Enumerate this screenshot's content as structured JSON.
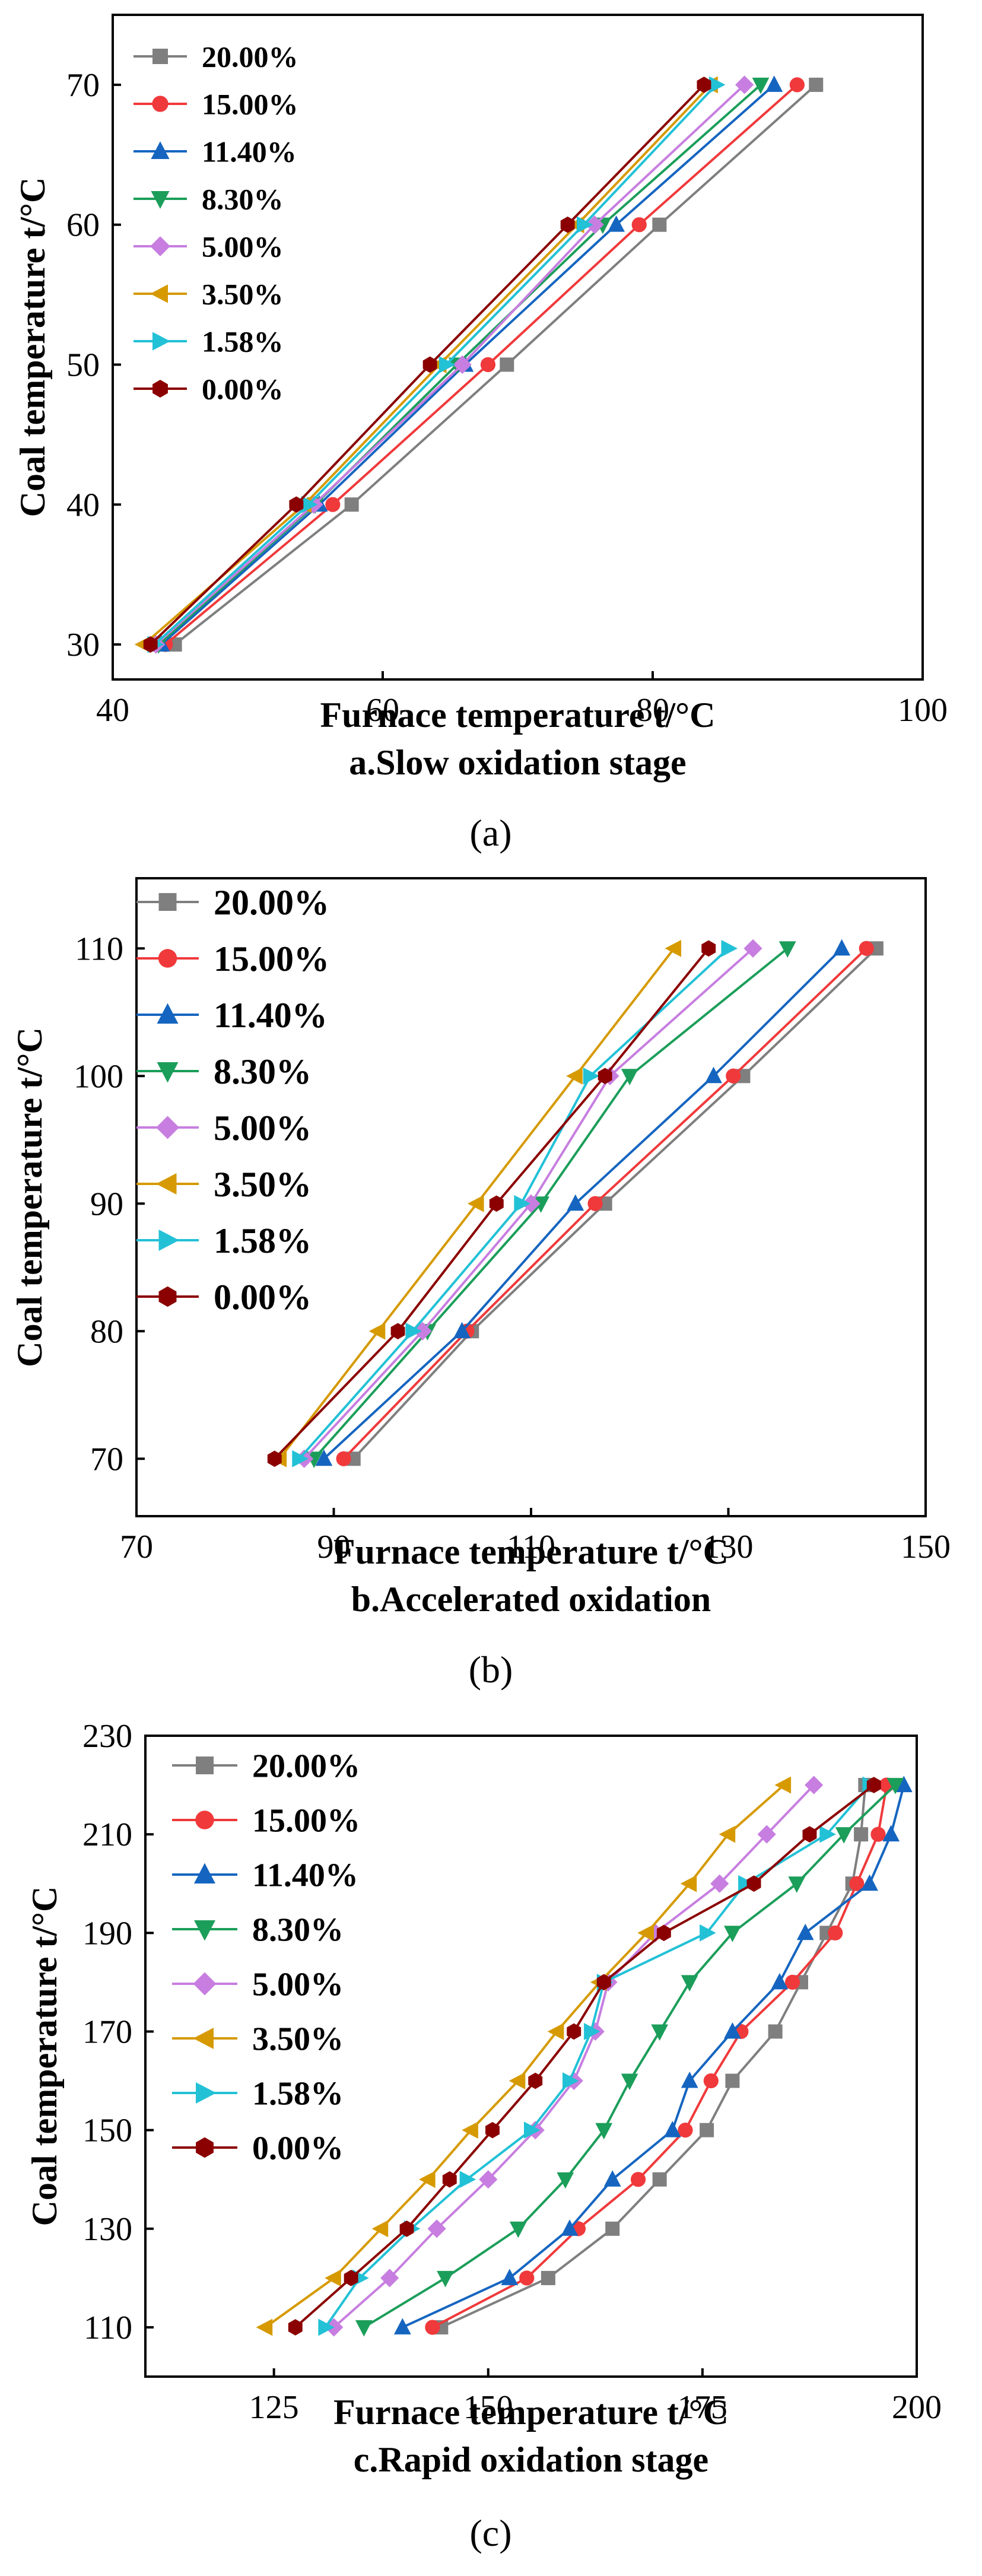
{
  "series_styles": [
    {
      "name": "20.00%",
      "color": "#7f7f7f",
      "marker": "square"
    },
    {
      "name": "15.00%",
      "color": "#f0393b",
      "marker": "circle"
    },
    {
      "name": "11.40%",
      "color": "#1565c0",
      "marker": "triangle-up"
    },
    {
      "name": "8.30%",
      "color": "#1b9e5a",
      "marker": "triangle-down"
    },
    {
      "name": "5.00%",
      "color": "#c77ee0",
      "marker": "diamond"
    },
    {
      "name": "3.50%",
      "color": "#d69a00",
      "marker": "triangle-left"
    },
    {
      "name": "1.58%",
      "color": "#22c1d6",
      "marker": "triangle-right"
    },
    {
      "name": "0.00%",
      "color": "#8b0000",
      "marker": "hexagon"
    }
  ],
  "chart_data": [
    {
      "id": "a",
      "type": "line",
      "xlabel": "Furnace temperature t/°C",
      "ylabel": "Coal temperature t/°C",
      "subtitle": "a.Slow oxidation stage",
      "caption": "(a)",
      "xlim": [
        40,
        100
      ],
      "ylim": [
        27.5,
        75
      ],
      "xticks": [
        40,
        60,
        80,
        100
      ],
      "yticks": [
        30,
        40,
        50,
        60,
        70
      ],
      "y": [
        30,
        40,
        50,
        60,
        70
      ],
      "series": [
        {
          "name": "20.00%",
          "x": [
            44.6,
            57.7,
            69.2,
            80.5,
            92.1
          ]
        },
        {
          "name": "15.00%",
          "x": [
            43.9,
            56.3,
            67.8,
            79.0,
            90.7
          ]
        },
        {
          "name": "11.40%",
          "x": [
            43.6,
            55.3,
            66.1,
            77.3,
            89.0
          ]
        },
        {
          "name": "8.30%",
          "x": [
            43.4,
            55.0,
            65.5,
            76.3,
            88.0
          ]
        },
        {
          "name": "5.00%",
          "x": [
            43.2,
            54.9,
            65.9,
            75.7,
            86.8
          ]
        },
        {
          "name": "3.50%",
          "x": [
            42.3,
            54.2,
            64.2,
            74.4,
            84.3
          ]
        },
        {
          "name": "1.58%",
          "x": [
            43.1,
            54.5,
            64.7,
            74.9,
            84.7
          ]
        },
        {
          "name": "0.00%",
          "x": [
            42.8,
            53.6,
            63.5,
            73.7,
            83.8
          ]
        }
      ]
    },
    {
      "id": "b",
      "type": "line",
      "xlabel": "Furnace temperature t/°C",
      "ylabel": "Coal temperature t/°C",
      "subtitle": "b.Accelerated oxidation",
      "caption": "(b)",
      "xlim": [
        70,
        150
      ],
      "ylim": [
        65.5,
        115.5
      ],
      "xticks": [
        70,
        90,
        110,
        130,
        150
      ],
      "yticks": [
        70,
        80,
        90,
        100,
        110
      ],
      "y": [
        70,
        80,
        90,
        100,
        110
      ],
      "series": [
        {
          "name": "20.00%",
          "x": [
            92.0,
            104.0,
            117.5,
            131.5,
            145.0
          ]
        },
        {
          "name": "15.00%",
          "x": [
            91.0,
            103.5,
            116.5,
            130.5,
            144.0
          ]
        },
        {
          "name": "11.40%",
          "x": [
            89.0,
            103.0,
            114.5,
            128.5,
            141.5
          ]
        },
        {
          "name": "8.30%",
          "x": [
            88.0,
            99.5,
            111.0,
            120.0,
            136.0
          ]
        },
        {
          "name": "5.00%",
          "x": [
            87.0,
            99.0,
            110.0,
            118.0,
            132.5
          ]
        },
        {
          "name": "3.50%",
          "x": [
            84.5,
            94.5,
            104.5,
            114.5,
            124.5
          ]
        },
        {
          "name": "1.58%",
          "x": [
            86.5,
            98.0,
            109.0,
            116.0,
            130.0
          ]
        },
        {
          "name": "0.00%",
          "x": [
            84.0,
            96.5,
            106.5,
            117.5,
            128.0
          ]
        }
      ]
    },
    {
      "id": "c",
      "type": "line",
      "xlabel": "Furnace temperature t/°C",
      "ylabel": "Coal temperature t/°C",
      "subtitle": "c.Rapid oxidation stage",
      "caption": "(c)",
      "xlim": [
        110,
        200
      ],
      "ylim": [
        100,
        230
      ],
      "xticks": [
        125,
        150,
        175,
        200
      ],
      "yticks": [
        110,
        130,
        150,
        170,
        190,
        210,
        230
      ],
      "y": [
        110,
        120,
        130,
        140,
        150,
        160,
        170,
        180,
        190,
        200,
        210,
        220
      ],
      "series": [
        {
          "name": "20.00%",
          "x": [
            144.5,
            157.0,
            164.5,
            170.0,
            175.5,
            178.5,
            183.5,
            186.5,
            189.5,
            192.5,
            193.5,
            194.0
          ]
        },
        {
          "name": "15.00%",
          "x": [
            143.5,
            154.5,
            160.5,
            167.5,
            173.0,
            176.0,
            179.5,
            185.5,
            190.5,
            193.0,
            195.5,
            196.5
          ]
        },
        {
          "name": "11.40%",
          "x": [
            140.0,
            152.5,
            159.5,
            164.5,
            171.5,
            173.5,
            178.5,
            184.0,
            187.0,
            194.5,
            197.0,
            198.5
          ]
        },
        {
          "name": "8.30%",
          "x": [
            135.5,
            145.0,
            153.5,
            159.0,
            163.5,
            166.5,
            170.0,
            173.5,
            178.5,
            186.0,
            191.5,
            197.5
          ]
        },
        {
          "name": "5.00%",
          "x": [
            132.0,
            138.5,
            144.0,
            150.0,
            155.5,
            160.0,
            162.5,
            164.0,
            169.5,
            177.0,
            182.5,
            188.0
          ]
        },
        {
          "name": "3.50%",
          "x": [
            124.0,
            132.0,
            137.5,
            143.0,
            148.0,
            153.5,
            158.0,
            163.0,
            168.5,
            173.5,
            178.0,
            184.5
          ]
        },
        {
          "name": "1.58%",
          "x": [
            131.0,
            135.0,
            141.0,
            147.5,
            155.0,
            159.5,
            162.0,
            163.5,
            175.5,
            180.0,
            189.5,
            194.5
          ]
        },
        {
          "name": "0.00%",
          "x": [
            127.5,
            134.0,
            140.5,
            145.5,
            150.5,
            155.5,
            160.0,
            163.5,
            170.5,
            181.0,
            187.5,
            195.0
          ]
        }
      ]
    }
  ]
}
